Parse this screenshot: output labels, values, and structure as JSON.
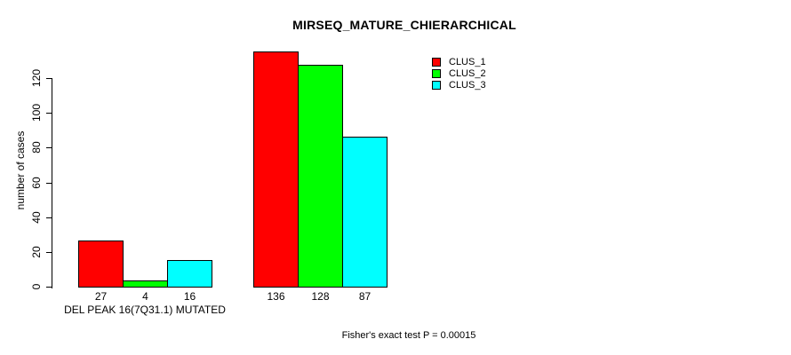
{
  "title": "MIRSEQ_MATURE_CHIERARCHICAL",
  "footer": "Fisher's exact test P = 0.00015",
  "colors": {
    "background": "#FFFFFF",
    "axis": "#000000",
    "bar_border": "#000000",
    "clus_1": "#FF0000",
    "clus_2": "#00FF00",
    "clus_3": "#00FFFF"
  },
  "chart_data": {
    "type": "bar",
    "title": "MIRSEQ_MATURE_CHIERARCHICAL",
    "xlabel": "",
    "ylabel": "number of cases",
    "ylim": [
      0,
      136
    ],
    "yticks": [
      0,
      20,
      40,
      60,
      80,
      100,
      120
    ],
    "grid": false,
    "legend_position": "top-right",
    "legend": [
      {
        "name": "CLUS_1",
        "color": "#FF0000"
      },
      {
        "name": "CLUS_2",
        "color": "#00FF00"
      },
      {
        "name": "CLUS_3",
        "color": "#00FFFF"
      }
    ],
    "groups": [
      {
        "label": "DEL PEAK 16(7Q31.1) MUTATED",
        "values": [
          27,
          4,
          16
        ]
      },
      {
        "label": "",
        "values": [
          136,
          128,
          87
        ]
      }
    ],
    "bar_value_labels": [
      [
        "27",
        "4",
        "16"
      ],
      [
        "136",
        "128",
        "87"
      ]
    ],
    "annotation": "Fisher's exact test P = 0.00015"
  }
}
